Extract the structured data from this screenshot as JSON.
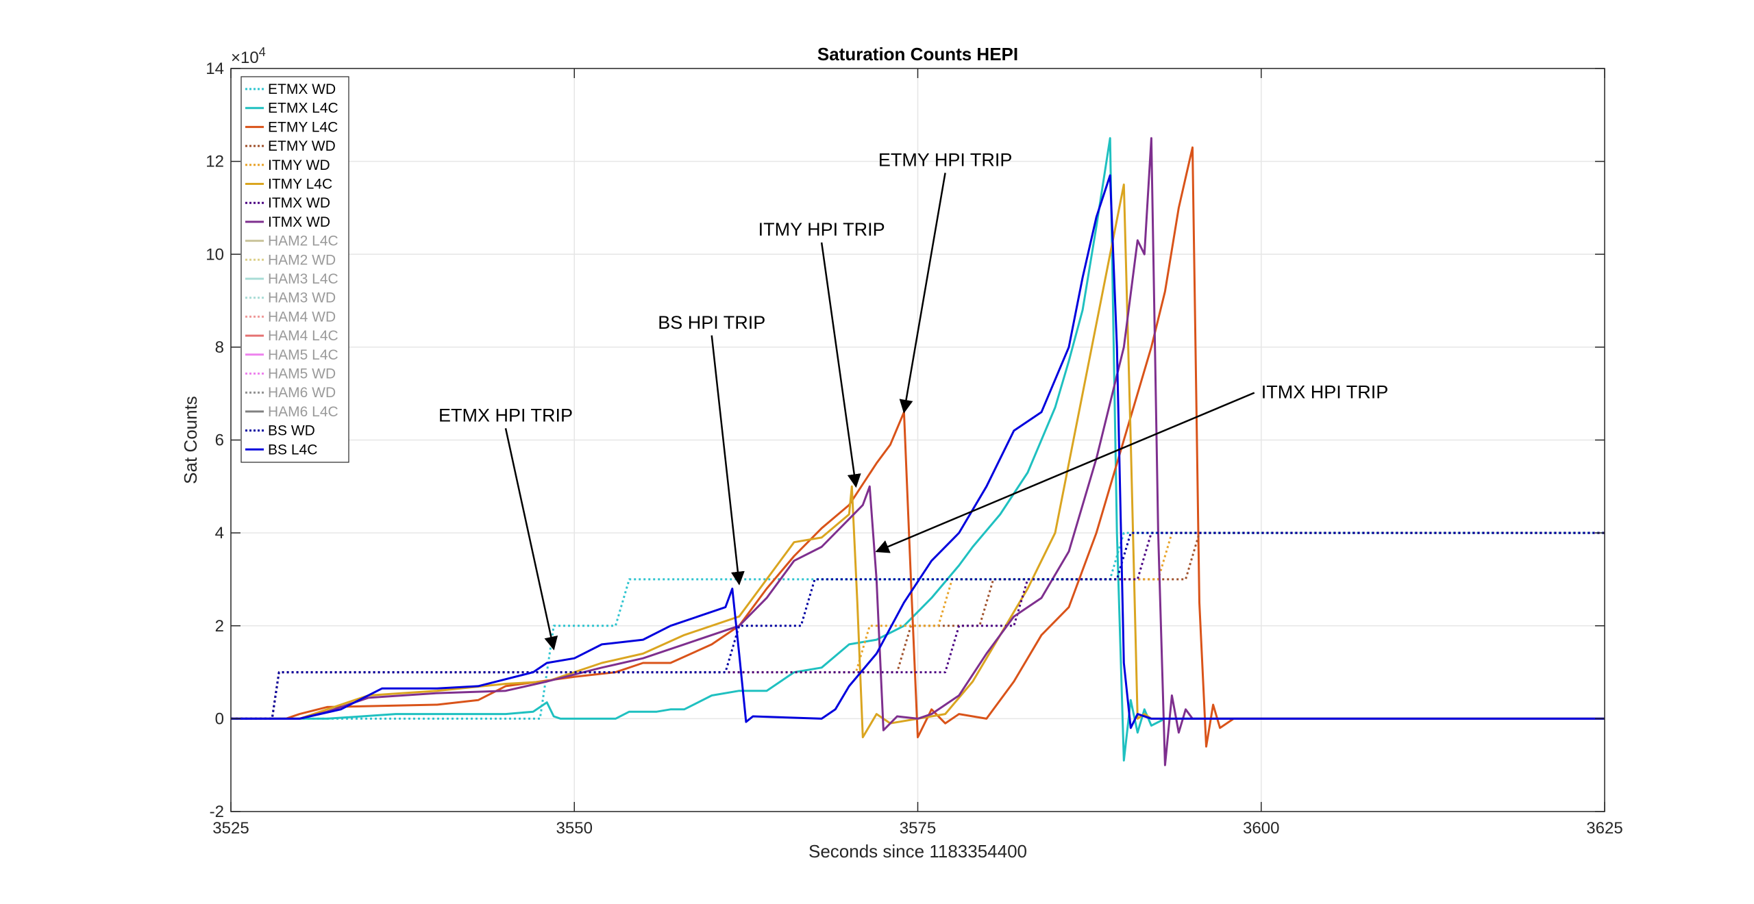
{
  "chart_data": {
    "type": "line",
    "title": "Saturation Counts HEPI",
    "xlabel": "Seconds since 1183354400",
    "ylabel": "Sat Counts",
    "y_exponent_label": "×10",
    "y_exponent_power": "4",
    "xlim": [
      3525,
      3625
    ],
    "ylim": [
      -20000,
      140000
    ],
    "x_ticks": [
      3525,
      3550,
      3575,
      3600,
      3625
    ],
    "x_tick_labels": [
      "3525",
      "3550",
      "3575",
      "3600",
      "3625"
    ],
    "y_ticks": [
      -20000,
      0,
      20000,
      40000,
      60000,
      80000,
      100000,
      120000,
      140000
    ],
    "y_tick_labels": [
      "-2",
      "0",
      "2",
      "4",
      "6",
      "8",
      "10",
      "12",
      "14"
    ],
    "grid": true,
    "legend_position": "top-left",
    "series": [
      {
        "name": "ETMX WD",
        "color": "#2ec4cf",
        "dash": true,
        "points": [
          [
            3525,
            0
          ],
          [
            3547.5,
            0
          ],
          [
            3548,
            10000
          ],
          [
            3548.5,
            20000
          ],
          [
            3553,
            20000
          ],
          [
            3553.5,
            25000
          ],
          [
            3554,
            30000
          ],
          [
            3589,
            30000
          ],
          [
            3589.5,
            35000
          ],
          [
            3590,
            40000
          ],
          [
            3625,
            40000
          ]
        ]
      },
      {
        "name": "ETMX L4C",
        "color": "#1fc0c0",
        "dash": false,
        "points": [
          [
            3525,
            0
          ],
          [
            3532,
            0
          ],
          [
            3537,
            1000
          ],
          [
            3545,
            1000
          ],
          [
            3547,
            1500
          ],
          [
            3548,
            3500
          ],
          [
            3548.5,
            500
          ],
          [
            3549,
            0
          ],
          [
            3553,
            0
          ],
          [
            3554,
            1500
          ],
          [
            3556,
            1500
          ],
          [
            3557,
            2000
          ],
          [
            3558,
            2000
          ],
          [
            3560,
            5000
          ],
          [
            3562,
            6000
          ],
          [
            3564,
            6000
          ],
          [
            3566,
            10000
          ],
          [
            3568,
            11000
          ],
          [
            3570,
            16000
          ],
          [
            3572,
            17000
          ],
          [
            3574,
            20000
          ],
          [
            3576,
            26000
          ],
          [
            3578,
            33000
          ],
          [
            3579,
            37000
          ],
          [
            3581,
            44000
          ],
          [
            3583,
            53000
          ],
          [
            3585,
            67000
          ],
          [
            3586,
            77000
          ],
          [
            3587,
            88000
          ],
          [
            3588,
            106000
          ],
          [
            3589,
            125000
          ],
          [
            3589.5,
            40000
          ],
          [
            3590,
            -9000
          ],
          [
            3590.5,
            4000
          ],
          [
            3591,
            -3000
          ],
          [
            3591.5,
            2000
          ],
          [
            3592,
            -1500
          ],
          [
            3593,
            0
          ],
          [
            3625,
            0
          ]
        ]
      },
      {
        "name": "ETMY L4C",
        "color": "#d95319",
        "dash": false,
        "points": [
          [
            3525,
            0
          ],
          [
            3529,
            0
          ],
          [
            3530,
            1000
          ],
          [
            3532,
            2500
          ],
          [
            3540,
            3000
          ],
          [
            3543,
            4000
          ],
          [
            3545,
            7000
          ],
          [
            3550,
            9000
          ],
          [
            3553,
            10000
          ],
          [
            3555,
            12000
          ],
          [
            3557,
            12000
          ],
          [
            3560,
            16000
          ],
          [
            3562,
            20000
          ],
          [
            3564,
            28000
          ],
          [
            3566,
            35000
          ],
          [
            3568,
            41000
          ],
          [
            3570,
            46000
          ],
          [
            3572,
            55000
          ],
          [
            3573,
            59000
          ],
          [
            3574,
            66000
          ],
          [
            3574.5,
            30000
          ],
          [
            3575,
            -4000
          ],
          [
            3576,
            2000
          ],
          [
            3577,
            -1000
          ],
          [
            3578,
            1000
          ],
          [
            3580,
            0
          ],
          [
            3582,
            8000
          ],
          [
            3584,
            18000
          ],
          [
            3586,
            24000
          ],
          [
            3588,
            40000
          ],
          [
            3590,
            60000
          ],
          [
            3592,
            80000
          ],
          [
            3593,
            92000
          ],
          [
            3594,
            110000
          ],
          [
            3595,
            123000
          ],
          [
            3595.5,
            25000
          ],
          [
            3596,
            -6000
          ],
          [
            3596.5,
            3000
          ],
          [
            3597,
            -2000
          ],
          [
            3598,
            0
          ],
          [
            3625,
            0
          ]
        ]
      },
      {
        "name": "ETMY WD",
        "color": "#a0522d",
        "dash": true,
        "points": [
          [
            3525,
            0
          ],
          [
            3528,
            0
          ],
          [
            3528.5,
            10000
          ],
          [
            3573.5,
            10000
          ],
          [
            3574,
            15000
          ],
          [
            3574.5,
            20000
          ],
          [
            3579.5,
            20000
          ],
          [
            3580,
            25000
          ],
          [
            3580.5,
            30000
          ],
          [
            3594.5,
            30000
          ],
          [
            3595,
            35000
          ],
          [
            3595.5,
            40000
          ],
          [
            3625,
            40000
          ]
        ]
      },
      {
        "name": "ITMY WD",
        "color": "#e8a32a",
        "dash": true,
        "points": [
          [
            3525,
            0
          ],
          [
            3528,
            0
          ],
          [
            3528.5,
            10000
          ],
          [
            3570.5,
            10000
          ],
          [
            3571,
            15000
          ],
          [
            3571.5,
            20000
          ],
          [
            3576.5,
            20000
          ],
          [
            3577,
            25000
          ],
          [
            3577.5,
            30000
          ],
          [
            3592.5,
            30000
          ],
          [
            3593,
            35000
          ],
          [
            3593.5,
            40000
          ],
          [
            3625,
            40000
          ]
        ]
      },
      {
        "name": "ITMY L4C",
        "color": "#daa520",
        "dash": false,
        "points": [
          [
            3525,
            0
          ],
          [
            3530,
            0
          ],
          [
            3532,
            2000
          ],
          [
            3535,
            5000
          ],
          [
            3540,
            6000
          ],
          [
            3545,
            7500
          ],
          [
            3548,
            8000
          ],
          [
            3552,
            12000
          ],
          [
            3555,
            14000
          ],
          [
            3558,
            18000
          ],
          [
            3562,
            22000
          ],
          [
            3564,
            30000
          ],
          [
            3566,
            38000
          ],
          [
            3568,
            39000
          ],
          [
            3570,
            44000
          ],
          [
            3570.2,
            50000
          ],
          [
            3570.6,
            25000
          ],
          [
            3571,
            -4000
          ],
          [
            3572,
            1000
          ],
          [
            3573,
            -1000
          ],
          [
            3575,
            0
          ],
          [
            3577,
            1000
          ],
          [
            3579,
            8000
          ],
          [
            3581,
            18000
          ],
          [
            3583,
            28000
          ],
          [
            3585,
            40000
          ],
          [
            3587,
            70000
          ],
          [
            3589,
            100000
          ],
          [
            3590,
            115000
          ],
          [
            3590.5,
            60000
          ],
          [
            3591,
            0
          ],
          [
            3591.5,
            1000
          ],
          [
            3592,
            0
          ],
          [
            3625,
            0
          ]
        ]
      },
      {
        "name": "ITMX WD",
        "color": "#4b0082",
        "dash": true,
        "points": [
          [
            3525,
            0
          ],
          [
            3528,
            0
          ],
          [
            3528.5,
            10000
          ],
          [
            3577,
            10000
          ],
          [
            3577.5,
            15000
          ],
          [
            3578,
            20000
          ],
          [
            3582,
            20000
          ],
          [
            3582.5,
            25000
          ],
          [
            3583,
            30000
          ],
          [
            3591,
            30000
          ],
          [
            3591.5,
            35000
          ],
          [
            3592,
            40000
          ],
          [
            3625,
            40000
          ]
        ]
      },
      {
        "name": "ITMX WD",
        "color": "#7e2f8e",
        "dash": false,
        "points": [
          [
            3525,
            0
          ],
          [
            3530,
            0
          ],
          [
            3532,
            1500
          ],
          [
            3535,
            4500
          ],
          [
            3540,
            5500
          ],
          [
            3545,
            6000
          ],
          [
            3548,
            8000
          ],
          [
            3552,
            11000
          ],
          [
            3555,
            13000
          ],
          [
            3558,
            16000
          ],
          [
            3562,
            20000
          ],
          [
            3564,
            26000
          ],
          [
            3566,
            34000
          ],
          [
            3568,
            37000
          ],
          [
            3570,
            43000
          ],
          [
            3571,
            46000
          ],
          [
            3571.5,
            50000
          ],
          [
            3572,
            30000
          ],
          [
            3572.5,
            -2500
          ],
          [
            3573.5,
            500
          ],
          [
            3575,
            0
          ],
          [
            3576,
            1000
          ],
          [
            3578,
            5000
          ],
          [
            3580,
            14000
          ],
          [
            3582,
            22000
          ],
          [
            3584,
            26000
          ],
          [
            3586,
            36000
          ],
          [
            3588,
            56000
          ],
          [
            3590,
            80000
          ],
          [
            3591,
            103000
          ],
          [
            3591.5,
            100000
          ],
          [
            3592,
            125000
          ],
          [
            3592.5,
            40000
          ],
          [
            3593,
            -10000
          ],
          [
            3593.5,
            5000
          ],
          [
            3594,
            -3000
          ],
          [
            3594.5,
            2000
          ],
          [
            3595,
            0
          ],
          [
            3625,
            0
          ]
        ]
      },
      {
        "name": "HAM2 L4C",
        "color": "#c9c39a",
        "dash": false,
        "points": []
      },
      {
        "name": "HAM2 WD",
        "color": "#dcd08a",
        "dash": true,
        "points": []
      },
      {
        "name": "HAM3 L4C",
        "color": "#a8dcd6",
        "dash": false,
        "points": []
      },
      {
        "name": "HAM3 WD",
        "color": "#a8dcd6",
        "dash": true,
        "points": []
      },
      {
        "name": "HAM4 WD",
        "color": "#ef9a9a",
        "dash": true,
        "points": []
      },
      {
        "name": "HAM4 L4C",
        "color": "#e57373",
        "dash": false,
        "points": []
      },
      {
        "name": "HAM5 L4C",
        "color": "#ee82ee",
        "dash": false,
        "points": []
      },
      {
        "name": "HAM5 WD",
        "color": "#ee82ee",
        "dash": true,
        "points": []
      },
      {
        "name": "HAM6 WD",
        "color": "#909090",
        "dash": true,
        "points": []
      },
      {
        "name": "HAM6 L4C",
        "color": "#808080",
        "dash": false,
        "points": []
      },
      {
        "name": "BS WD",
        "color": "#0000a0",
        "dash": true,
        "points": [
          [
            3525,
            0
          ],
          [
            3528,
            0
          ],
          [
            3528.5,
            10000
          ],
          [
            3561,
            10000
          ],
          [
            3561.5,
            15000
          ],
          [
            3562,
            20000
          ],
          [
            3566.5,
            20000
          ],
          [
            3567,
            25000
          ],
          [
            3567.5,
            30000
          ],
          [
            3589.5,
            30000
          ],
          [
            3590,
            35000
          ],
          [
            3590.5,
            40000
          ],
          [
            3625,
            40000
          ]
        ]
      },
      {
        "name": "BS L4C",
        "color": "#0000dd",
        "dash": false,
        "points": [
          [
            3525,
            0
          ],
          [
            3530,
            0
          ],
          [
            3533,
            2000
          ],
          [
            3536,
            6500
          ],
          [
            3540,
            6500
          ],
          [
            3543,
            7000
          ],
          [
            3547,
            10000
          ],
          [
            3548,
            12000
          ],
          [
            3550,
            13000
          ],
          [
            3552,
            16000
          ],
          [
            3555,
            17000
          ],
          [
            3557,
            20000
          ],
          [
            3559,
            22000
          ],
          [
            3561,
            24000
          ],
          [
            3561.5,
            28000
          ],
          [
            3562,
            14000
          ],
          [
            3562.5,
            -700
          ],
          [
            3563,
            500
          ],
          [
            3568,
            0
          ],
          [
            3569,
            2000
          ],
          [
            3570,
            7000
          ],
          [
            3572,
            14000
          ],
          [
            3574,
            25000
          ],
          [
            3576,
            34000
          ],
          [
            3578,
            40000
          ],
          [
            3580,
            50000
          ],
          [
            3582,
            62000
          ],
          [
            3584,
            66000
          ],
          [
            3586,
            80000
          ],
          [
            3587,
            95000
          ],
          [
            3588,
            108000
          ],
          [
            3589,
            117000
          ],
          [
            3589.5,
            80000
          ],
          [
            3590,
            12000
          ],
          [
            3590.5,
            -2000
          ],
          [
            3591,
            1000
          ],
          [
            3592,
            0
          ],
          [
            3625,
            0
          ]
        ]
      }
    ],
    "annotations": [
      {
        "text": "ETMX HPI TRIP",
        "x": 3545,
        "y": 64000,
        "arrow_to": [
          3548.5,
          15000
        ]
      },
      {
        "text": "BS HPI TRIP",
        "x": 3560,
        "y": 84000,
        "arrow_to": [
          3562,
          29000
        ]
      },
      {
        "text": "ITMY HPI TRIP",
        "x": 3568,
        "y": 104000,
        "arrow_to": [
          3570.5,
          50000
        ]
      },
      {
        "text": "ETMY HPI TRIP",
        "x": 3577,
        "y": 119000,
        "arrow_to": [
          3574,
          66000
        ]
      },
      {
        "text": "ITMX HPI TRIP",
        "x": 3600,
        "y": 69000,
        "arrow_to": [
          3572,
          36000
        ]
      }
    ]
  }
}
